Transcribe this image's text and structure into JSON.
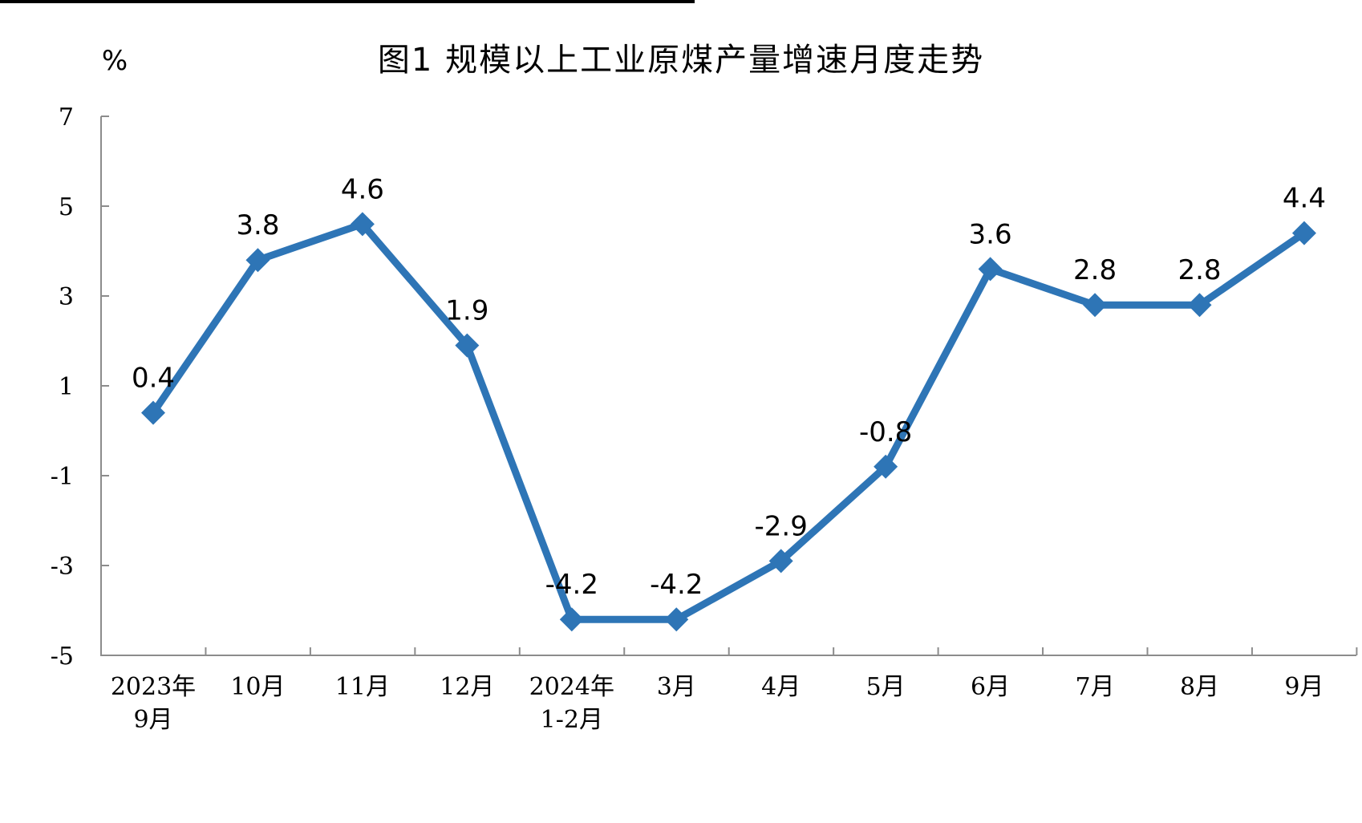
{
  "chart": {
    "title": "图1  规模以上工业原煤产量增速月度走势",
    "unit_label": "%"
  },
  "chart_data": {
    "type": "line",
    "title": "图1  规模以上工业原煤产量增速月度走势",
    "ylabel": "%",
    "xlabel": "",
    "categories": [
      "2023年9月",
      "10月",
      "11月",
      "12月",
      "2024年1-2月",
      "3月",
      "4月",
      "5月",
      "6月",
      "7月",
      "8月",
      "9月"
    ],
    "category_lines": [
      [
        "2023年",
        "9月"
      ],
      [
        "10月"
      ],
      [
        "11月"
      ],
      [
        "12月"
      ],
      [
        "2024年",
        "1-2月"
      ],
      [
        "3月"
      ],
      [
        "4月"
      ],
      [
        "5月"
      ],
      [
        "6月"
      ],
      [
        "7月"
      ],
      [
        "8月"
      ],
      [
        "9月"
      ]
    ],
    "values": [
      0.4,
      3.8,
      4.6,
      1.9,
      -4.2,
      -4.2,
      -2.9,
      -0.8,
      3.6,
      2.8,
      2.8,
      4.4
    ],
    "data_labels": [
      "0.4",
      "3.8",
      "4.6",
      "1.9",
      "-4.2",
      "-4.2",
      "-2.9",
      "-0.8",
      "3.6",
      "2.8",
      "2.8",
      "4.4"
    ],
    "y_ticks": [
      7,
      5,
      3,
      1,
      -1,
      -3,
      -5
    ],
    "ylim": [
      -5,
      7
    ],
    "grid": false,
    "legend": "none",
    "marker": "diamond",
    "line_color": "#2E75B6",
    "marker_color": "#2E75B6",
    "axis_color": "#8c8c8c",
    "text_color": "#000000"
  }
}
